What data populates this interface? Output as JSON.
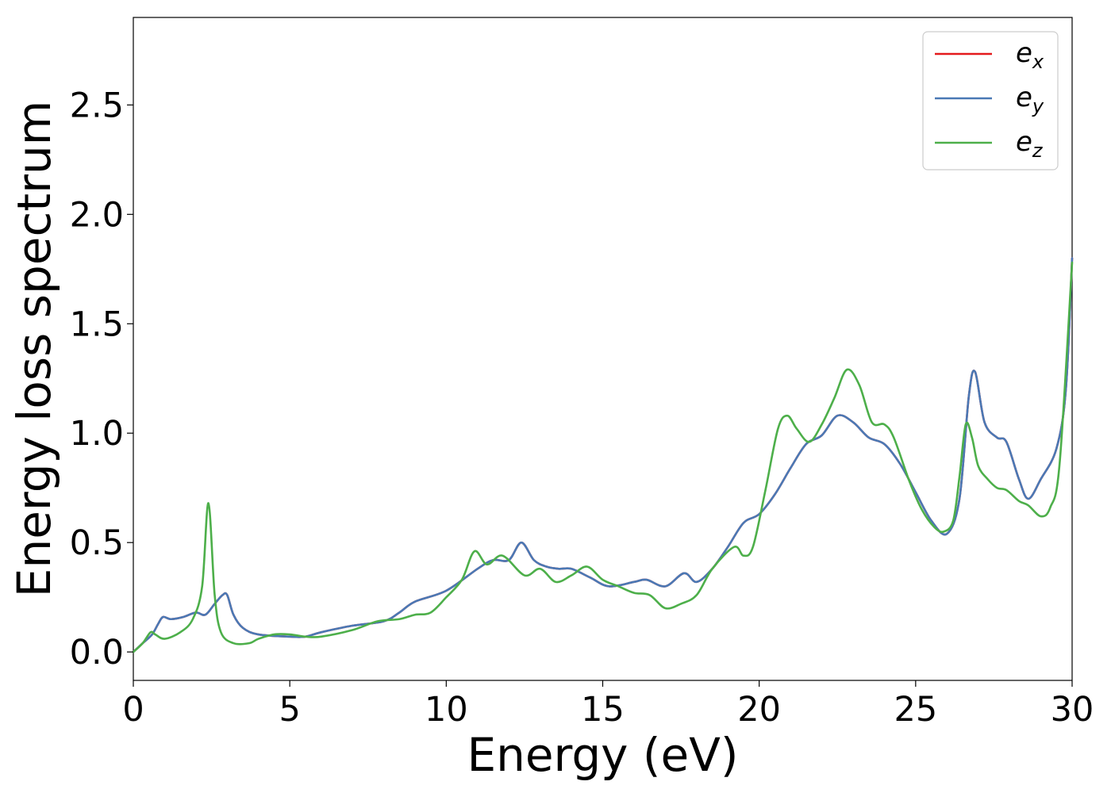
{
  "chart_data": {
    "type": "line",
    "title": "",
    "xlabel": "Energy (eV)",
    "ylabel": "Energy loss spectrum",
    "xlim": [
      0,
      30
    ],
    "ylim": [
      -0.13,
      2.9
    ],
    "xticks": [
      0,
      5,
      10,
      15,
      20,
      25,
      30
    ],
    "xtick_labels": [
      "0",
      "5",
      "10",
      "15",
      "20",
      "25",
      "30"
    ],
    "yticks": [
      0.0,
      0.5,
      1.0,
      1.5,
      2.0,
      2.5
    ],
    "ytick_labels": [
      "0.0",
      "0.5",
      "1.0",
      "1.5",
      "2.0",
      "2.5"
    ],
    "grid": false,
    "legend_position": "top-right",
    "series": [
      {
        "name": "e_x",
        "label_base": "e",
        "label_sub": "x",
        "color": "#e41a1c",
        "x": [
          0,
          0.3,
          0.6,
          0.8,
          0.95,
          1.2,
          1.6,
          2.0,
          2.3,
          2.6,
          2.85,
          3.0,
          3.2,
          3.5,
          4.0,
          5.0,
          5.5,
          6.0,
          7.0,
          8.0,
          8.5,
          9.0,
          10.0,
          11.0,
          11.5,
          12.0,
          12.4,
          12.8,
          13.2,
          13.6,
          14.0,
          14.6,
          15.2,
          16.0,
          16.4,
          17.0,
          17.6,
          18.0,
          18.5,
          19.0,
          19.5,
          20.0,
          20.5,
          21.0,
          21.5,
          22.0,
          22.5,
          23.0,
          23.5,
          24.0,
          24.5,
          25.0,
          25.5,
          26.0,
          26.4,
          26.7,
          26.9,
          27.2,
          27.6,
          27.9,
          28.3,
          28.6,
          29.0,
          29.5,
          29.8,
          30.0
        ],
        "y": [
          0.0,
          0.04,
          0.08,
          0.13,
          0.16,
          0.15,
          0.16,
          0.18,
          0.17,
          0.22,
          0.26,
          0.26,
          0.17,
          0.11,
          0.08,
          0.07,
          0.07,
          0.09,
          0.12,
          0.14,
          0.18,
          0.23,
          0.28,
          0.38,
          0.42,
          0.42,
          0.5,
          0.42,
          0.39,
          0.38,
          0.38,
          0.34,
          0.3,
          0.32,
          0.33,
          0.3,
          0.36,
          0.32,
          0.38,
          0.48,
          0.59,
          0.63,
          0.72,
          0.84,
          0.95,
          0.99,
          1.08,
          1.05,
          0.98,
          0.95,
          0.86,
          0.73,
          0.6,
          0.54,
          0.7,
          1.17,
          1.28,
          1.05,
          0.98,
          0.96,
          0.79,
          0.7,
          0.79,
          0.93,
          1.2,
          1.8
        ]
      },
      {
        "name": "e_y",
        "label_base": "e",
        "label_sub": "y",
        "color": "#4a79b5",
        "x": [
          0,
          0.3,
          0.6,
          0.8,
          0.95,
          1.2,
          1.6,
          2.0,
          2.3,
          2.6,
          2.85,
          3.0,
          3.2,
          3.5,
          4.0,
          5.0,
          5.5,
          6.0,
          7.0,
          8.0,
          8.5,
          9.0,
          10.0,
          11.0,
          11.5,
          12.0,
          12.4,
          12.8,
          13.2,
          13.6,
          14.0,
          14.6,
          15.2,
          16.0,
          16.4,
          17.0,
          17.6,
          18.0,
          18.5,
          19.0,
          19.5,
          20.0,
          20.5,
          21.0,
          21.5,
          22.0,
          22.5,
          23.0,
          23.5,
          24.0,
          24.5,
          25.0,
          25.5,
          26.0,
          26.4,
          26.7,
          26.9,
          27.2,
          27.6,
          27.9,
          28.3,
          28.6,
          29.0,
          29.5,
          29.8,
          30.0
        ],
        "y": [
          0.0,
          0.04,
          0.08,
          0.13,
          0.16,
          0.15,
          0.16,
          0.18,
          0.17,
          0.22,
          0.26,
          0.26,
          0.17,
          0.11,
          0.08,
          0.07,
          0.07,
          0.09,
          0.12,
          0.14,
          0.18,
          0.23,
          0.28,
          0.38,
          0.42,
          0.42,
          0.5,
          0.42,
          0.39,
          0.38,
          0.38,
          0.34,
          0.3,
          0.32,
          0.33,
          0.3,
          0.36,
          0.32,
          0.38,
          0.48,
          0.59,
          0.63,
          0.72,
          0.84,
          0.95,
          0.99,
          1.08,
          1.05,
          0.98,
          0.95,
          0.86,
          0.73,
          0.6,
          0.54,
          0.7,
          1.17,
          1.28,
          1.05,
          0.98,
          0.96,
          0.79,
          0.7,
          0.79,
          0.93,
          1.2,
          1.8
        ]
      },
      {
        "name": "e_z",
        "label_base": "e",
        "label_sub": "z",
        "color": "#4daf4a",
        "x": [
          0,
          0.3,
          0.55,
          0.7,
          1.0,
          1.5,
          1.9,
          2.2,
          2.4,
          2.6,
          2.8,
          3.2,
          3.7,
          4.0,
          4.5,
          5.0,
          5.5,
          6.0,
          7.0,
          7.8,
          8.5,
          9.0,
          9.5,
          10.0,
          10.5,
          10.9,
          11.3,
          11.8,
          12.5,
          13.0,
          13.5,
          14.0,
          14.5,
          15.0,
          15.5,
          16.0,
          16.5,
          17.0,
          17.5,
          18.0,
          18.5,
          19.2,
          19.5,
          19.8,
          20.2,
          20.6,
          20.9,
          21.2,
          21.6,
          22.0,
          22.4,
          22.8,
          23.2,
          23.6,
          24.0,
          24.3,
          24.8,
          25.2,
          25.6,
          25.9,
          26.2,
          26.4,
          26.6,
          26.8,
          27.0,
          27.3,
          27.6,
          27.9,
          28.3,
          28.6,
          29.0,
          29.3,
          29.6,
          30.0
        ],
        "y": [
          0.0,
          0.04,
          0.09,
          0.08,
          0.06,
          0.09,
          0.15,
          0.3,
          0.68,
          0.26,
          0.09,
          0.04,
          0.04,
          0.06,
          0.08,
          0.08,
          0.07,
          0.07,
          0.1,
          0.14,
          0.15,
          0.17,
          0.18,
          0.25,
          0.33,
          0.46,
          0.4,
          0.44,
          0.35,
          0.38,
          0.32,
          0.35,
          0.39,
          0.33,
          0.3,
          0.27,
          0.26,
          0.2,
          0.22,
          0.26,
          0.38,
          0.48,
          0.44,
          0.48,
          0.74,
          1.02,
          1.08,
          1.02,
          0.96,
          1.04,
          1.16,
          1.29,
          1.22,
          1.05,
          1.04,
          0.98,
          0.78,
          0.65,
          0.57,
          0.55,
          0.6,
          0.8,
          1.04,
          0.98,
          0.85,
          0.79,
          0.75,
          0.74,
          0.69,
          0.67,
          0.62,
          0.66,
          0.86,
          1.78
        ]
      }
    ]
  }
}
